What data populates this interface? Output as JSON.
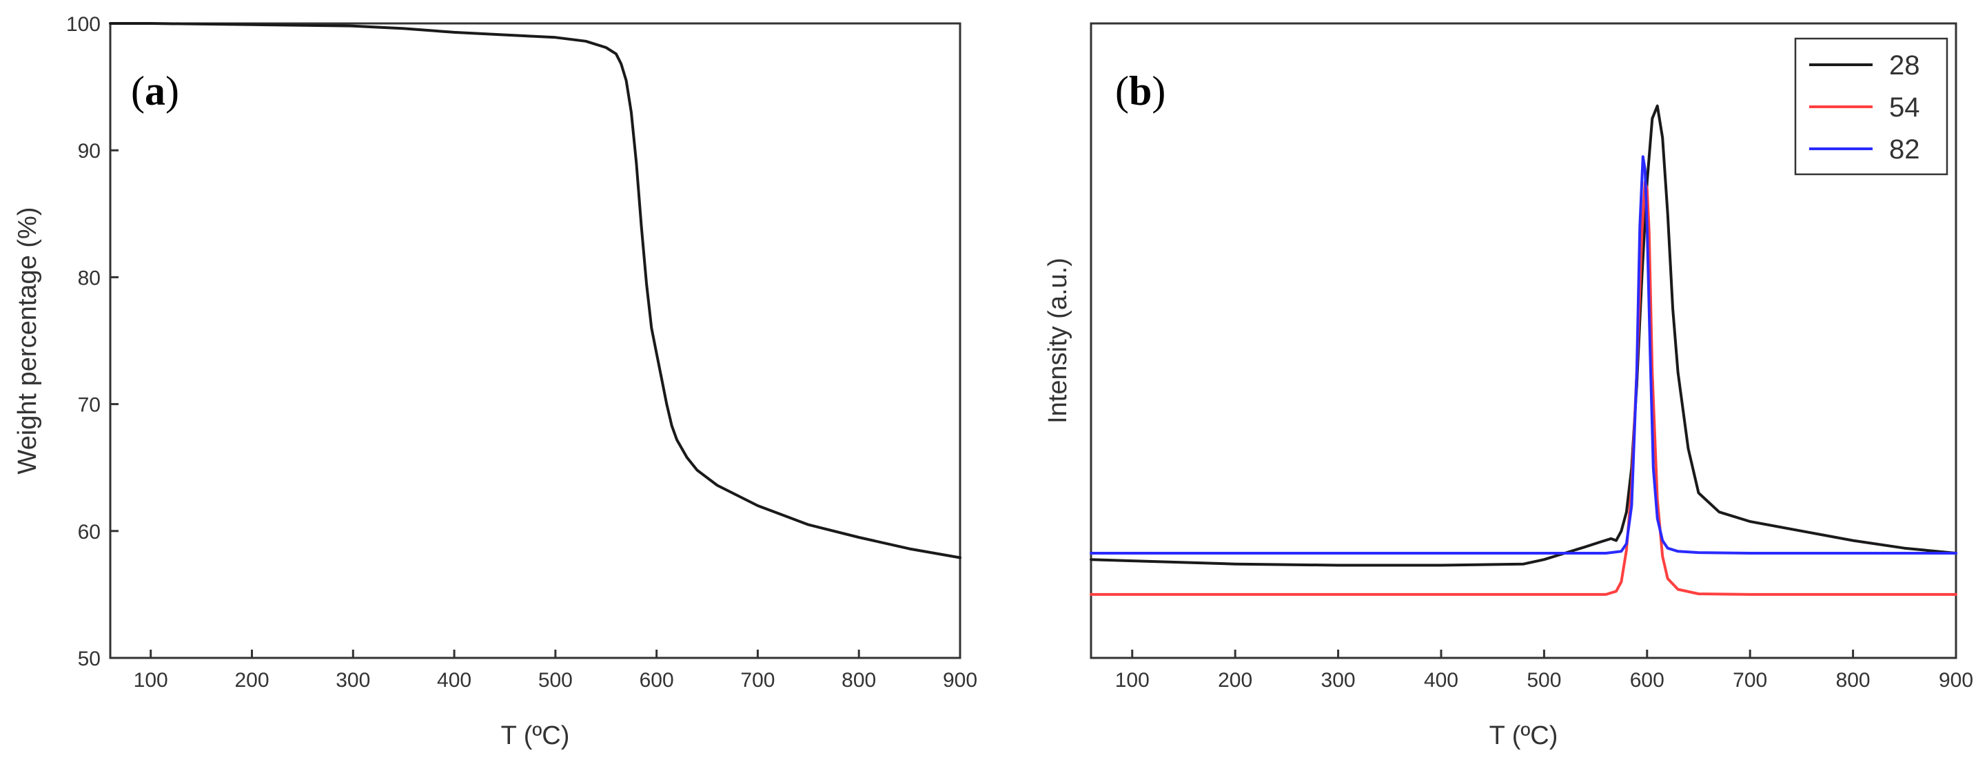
{
  "chart_data": [
    {
      "panel": "(a)",
      "type": "line",
      "xlabel": "T (ºC)",
      "ylabel": "Weight percentage (%)",
      "xlim": [
        60,
        900
      ],
      "ylim": [
        50,
        100
      ],
      "xticks": [
        100,
        200,
        300,
        400,
        500,
        600,
        700,
        800,
        900
      ],
      "yticks": [
        50,
        60,
        70,
        80,
        90,
        100
      ],
      "grid": false,
      "series": [
        {
          "color": "#1a1a1a",
          "x": [
            60,
            100,
            200,
            300,
            350,
            400,
            450,
            500,
            530,
            550,
            560,
            565,
            570,
            575,
            580,
            585,
            590,
            595,
            600,
            605,
            610,
            615,
            620,
            630,
            640,
            660,
            700,
            750,
            800,
            850,
            900
          ],
          "y": [
            100,
            100,
            99.9,
            99.8,
            99.6,
            99.3,
            99.1,
            98.9,
            98.6,
            98.1,
            97.6,
            96.8,
            95.5,
            93,
            89,
            84,
            79.5,
            76,
            74,
            72,
            70,
            68.3,
            67.2,
            65.8,
            64.8,
            63.6,
            62,
            60.5,
            59.5,
            58.6,
            57.9
          ]
        }
      ]
    },
    {
      "panel": "(b)",
      "type": "line",
      "xlabel": "T (ºC)",
      "ylabel": "Intensity (a.u.)",
      "xlim": [
        60,
        900
      ],
      "ylim": [
        0,
        100
      ],
      "xticks": [
        100,
        200,
        300,
        400,
        500,
        600,
        700,
        800,
        900
      ],
      "yticks": [],
      "grid": false,
      "legend_position": "top-right",
      "series": [
        {
          "name": "28",
          "color": "#1a1a1a",
          "x": [
            60,
            100,
            200,
            300,
            400,
            480,
            500,
            520,
            540,
            555,
            565,
            570,
            575,
            580,
            585,
            590,
            595,
            600,
            605,
            610,
            615,
            620,
            625,
            630,
            640,
            650,
            670,
            700,
            750,
            800,
            850,
            900
          ],
          "y": [
            15.5,
            15.3,
            14.8,
            14.6,
            14.6,
            14.8,
            15.5,
            16.5,
            17.5,
            18.3,
            18.8,
            18.5,
            20,
            23,
            30,
            43,
            60,
            75,
            85,
            87,
            82,
            70,
            55,
            45,
            33,
            26,
            23,
            21.5,
            20,
            18.5,
            17.3,
            16.5
          ]
        },
        {
          "name": "54",
          "color": "#ff4040",
          "x": [
            60,
            200,
            400,
            560,
            570,
            575,
            580,
            585,
            590,
            595,
            598,
            600,
            602,
            605,
            610,
            615,
            620,
            630,
            650,
            700,
            800,
            900
          ],
          "y": [
            10,
            10,
            10,
            10,
            10.5,
            12,
            17,
            27,
            45,
            67,
            75,
            74,
            67,
            45,
            25,
            16,
            12.5,
            10.8,
            10.1,
            10,
            10,
            10
          ]
        },
        {
          "name": "82",
          "color": "#2a2aff",
          "x": [
            60,
            200,
            400,
            560,
            575,
            580,
            585,
            590,
            593,
            596,
            598,
            600,
            603,
            606,
            610,
            615,
            620,
            630,
            650,
            700,
            800,
            900
          ],
          "y": [
            16.5,
            16.5,
            16.5,
            16.5,
            16.8,
            18,
            24,
            45,
            68,
            79,
            77,
            68,
            48,
            30,
            22,
            18.5,
            17.3,
            16.8,
            16.6,
            16.5,
            16.5,
            16.5
          ]
        }
      ]
    }
  ]
}
